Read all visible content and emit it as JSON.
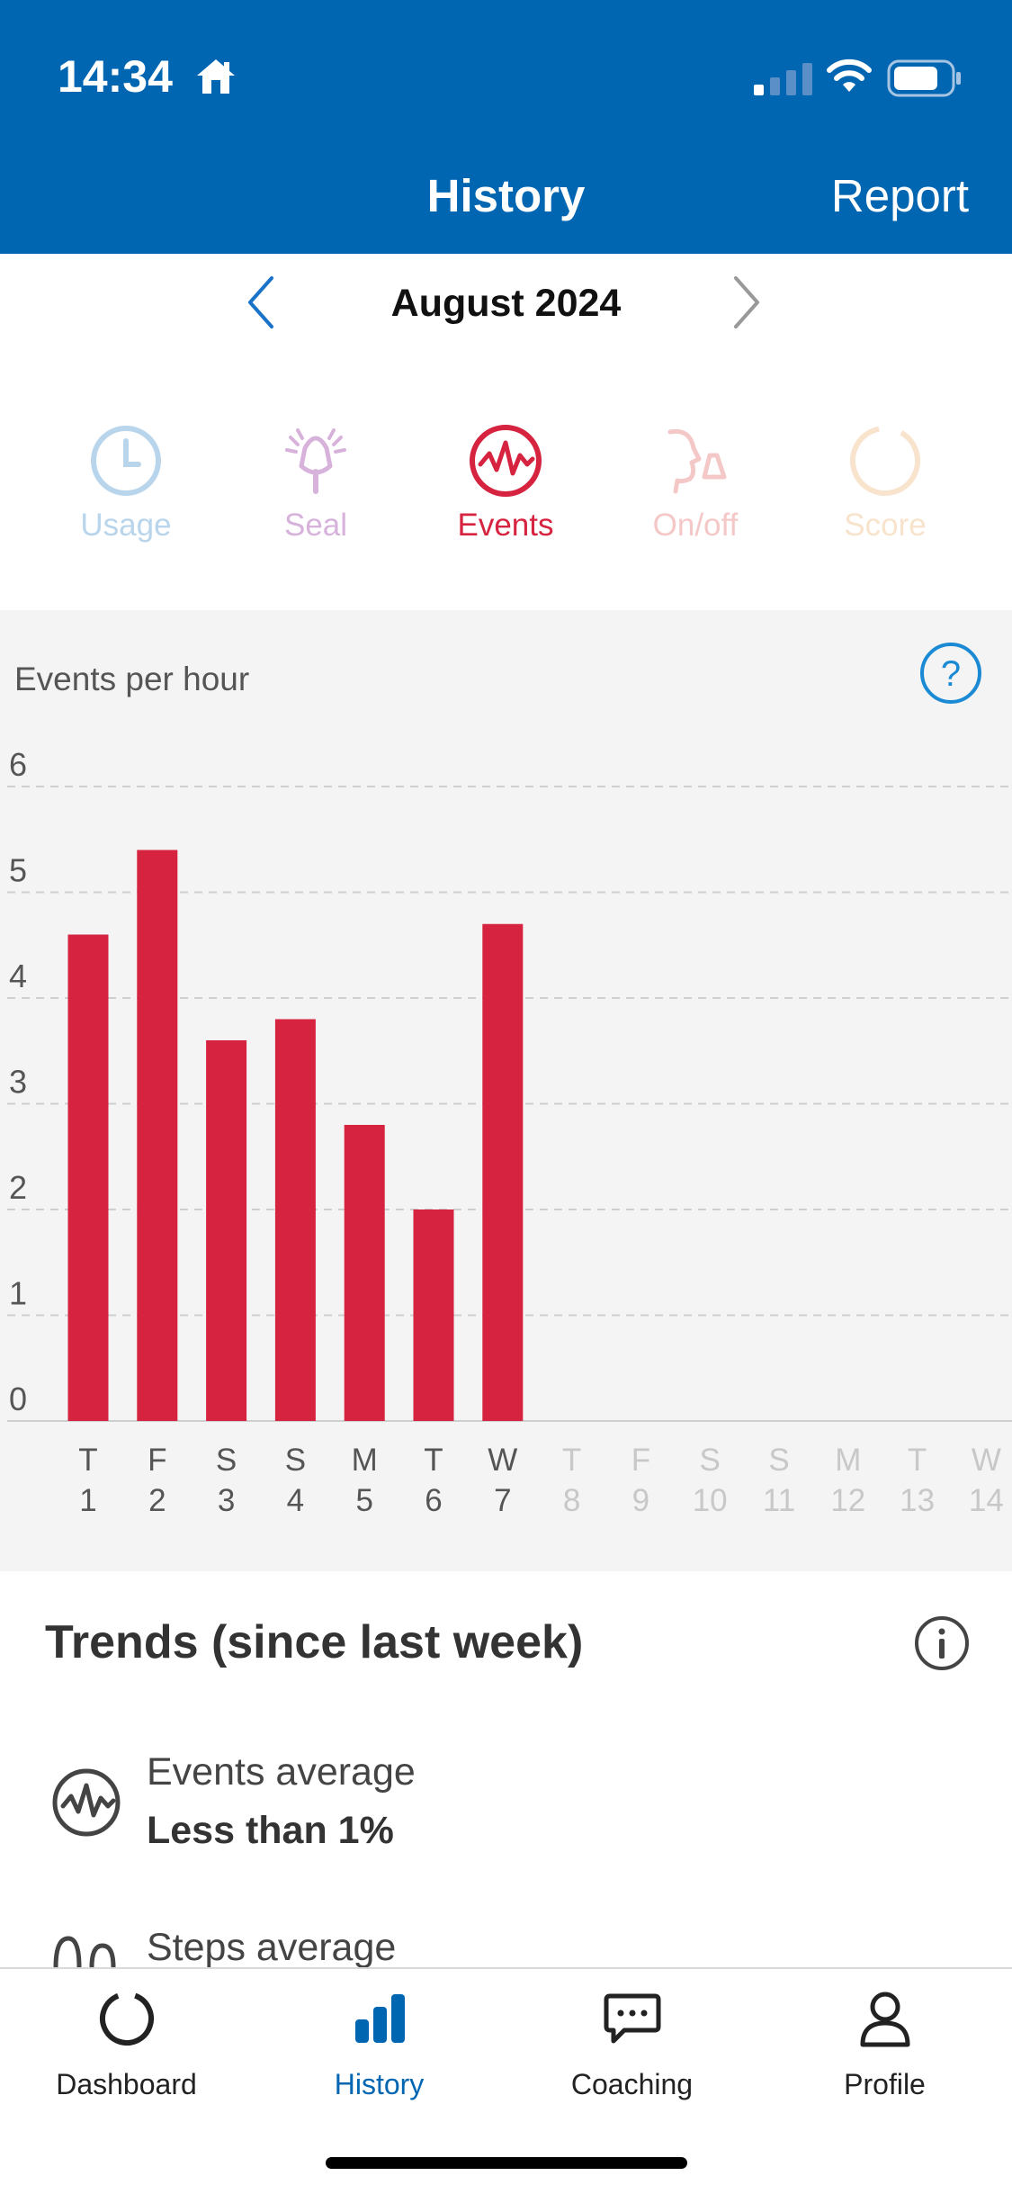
{
  "status": {
    "time": "14:34"
  },
  "header": {
    "title": "History",
    "report": "Report"
  },
  "month": {
    "label": "August 2024"
  },
  "metrics": [
    {
      "name": "usage",
      "label": "Usage",
      "icon": "clock-icon",
      "color": "#b9d5ec"
    },
    {
      "name": "seal",
      "label": "Seal",
      "icon": "mask-seal-icon",
      "color": "#d7b3dc"
    },
    {
      "name": "events",
      "label": "Events",
      "icon": "events-wave-icon",
      "color": "#d6233f",
      "active": true
    },
    {
      "name": "onoff",
      "label": "On/off",
      "icon": "face-mask-icon",
      "color": "#f5c8c8"
    },
    {
      "name": "score",
      "label": "Score",
      "icon": "score-ring-icon",
      "color": "#f8e3cd"
    }
  ],
  "chart_data": {
    "type": "bar",
    "title": "Events per hour",
    "ylim": [
      0,
      6
    ],
    "yticks": [
      "0",
      "1",
      "2",
      "3",
      "4",
      "5",
      "6"
    ],
    "grid": true,
    "categories": [
      {
        "day": "T",
        "date": "1"
      },
      {
        "day": "F",
        "date": "2"
      },
      {
        "day": "S",
        "date": "3"
      },
      {
        "day": "S",
        "date": "4"
      },
      {
        "day": "M",
        "date": "5"
      },
      {
        "day": "T",
        "date": "6"
      },
      {
        "day": "W",
        "date": "7"
      },
      {
        "day": "T",
        "date": "8"
      },
      {
        "day": "F",
        "date": "9"
      },
      {
        "day": "S",
        "date": "10"
      },
      {
        "day": "S",
        "date": "11"
      },
      {
        "day": "M",
        "date": "12"
      },
      {
        "day": "T",
        "date": "13"
      },
      {
        "day": "W",
        "date": "14"
      }
    ],
    "values": [
      4.6,
      5.4,
      3.6,
      3.8,
      2.8,
      2.0,
      4.7,
      null,
      null,
      null,
      null,
      null,
      null,
      null
    ],
    "bar_color": "#d6233f"
  },
  "trends": {
    "title": "Trends (since last week)",
    "items": [
      {
        "label": "Events average",
        "value": "Less than 1%",
        "icon": "events-wave-icon"
      },
      {
        "label": "Steps average",
        "icon": "steps-icon"
      }
    ]
  },
  "tabs": [
    {
      "label": "Dashboard",
      "icon": "dashboard-ring-icon"
    },
    {
      "label": "History",
      "icon": "bar-chart-icon",
      "active": true
    },
    {
      "label": "Coaching",
      "icon": "chat-bubble-icon"
    },
    {
      "label": "Profile",
      "icon": "person-icon"
    }
  ],
  "colors": {
    "brand": "#0066b2",
    "accent": "#d6233f"
  }
}
